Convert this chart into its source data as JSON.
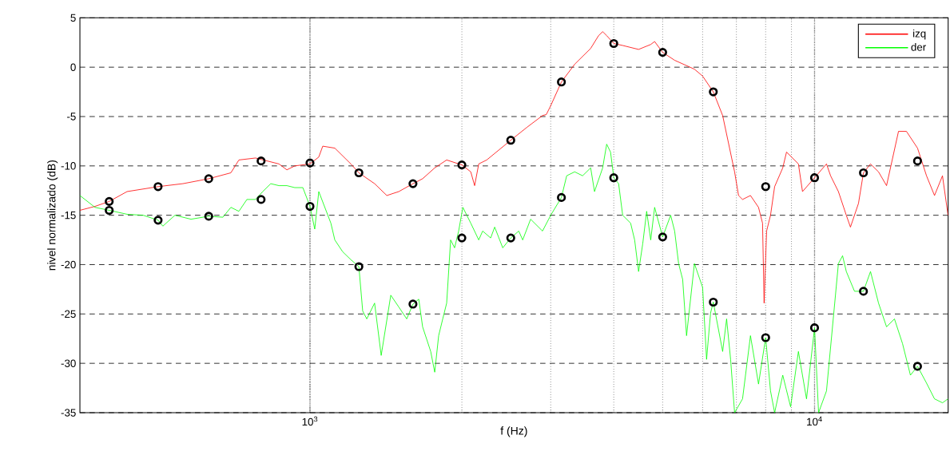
{
  "chart_data": {
    "type": "line",
    "xlabel": "f (Hz)",
    "ylabel": "nivel normalizado (dB)",
    "log": "x",
    "grid": true,
    "legend": "top right",
    "xlim": [
      350,
      18400
    ],
    "ylim": [
      -35,
      5
    ],
    "xticks": [
      {
        "value": 1000,
        "label": "10$^{3}$"
      },
      {
        "value": 10000,
        "label": "10$^{4}$"
      }
    ],
    "yticks": [
      -35,
      -30,
      -25,
      -20,
      -15,
      -10,
      -5,
      0,
      5
    ],
    "series": [
      {
        "name": "izq",
        "color": "#ff0000",
        "x": [
          350,
          375,
          400,
          434,
          500,
          560,
          630,
          697,
          723,
          780,
          868,
          900,
          933,
          1000,
          1041,
          1060,
          1120,
          1205,
          1250,
          1343,
          1420,
          1500,
          1600,
          1672,
          1767,
          1866,
          2000,
          2083,
          2120,
          2160,
          2240,
          2500,
          2690,
          2890,
          2940,
          3000,
          3150,
          3347,
          3600,
          3733,
          3803,
          3873,
          4000,
          4166,
          4480,
          4735,
          4820,
          5000,
          5281,
          5780,
          6000,
          6300,
          6575,
          6943,
          7070,
          7200,
          7465,
          7745,
          7888,
          7945,
          8035,
          8180,
          8335,
          8650,
          8800,
          9290,
          9465,
          10000,
          10560,
          10760,
          11150,
          11560,
          11780,
          12220,
          12500,
          12910,
          13390,
          13890,
          14670,
          15210,
          16000,
          16670,
          17290,
          17930,
          18390
        ],
        "values": [
          -14.5,
          -14.1,
          -13.6,
          -12.6,
          -12.1,
          -11.8,
          -11.3,
          -10.7,
          -9.4,
          -9.2,
          -9.8,
          -10.4,
          -10.0,
          -9.8,
          -9.1,
          -8.0,
          -8.2,
          -9.8,
          -10.7,
          -11.8,
          -13.0,
          -12.6,
          -11.8,
          -11.3,
          -10.2,
          -9.4,
          -9.9,
          -10.6,
          -12.0,
          -9.8,
          -9.4,
          -7.4,
          -6.1,
          -4.9,
          -4.8,
          -3.9,
          -1.5,
          0.3,
          1.9,
          3.2,
          3.6,
          3.2,
          2.4,
          2.2,
          1.8,
          2.3,
          2.6,
          1.5,
          0.7,
          -0.2,
          -0.9,
          -2.5,
          -4.9,
          -10.6,
          -13.0,
          -13.4,
          -13.0,
          -14.2,
          -15.8,
          -23.9,
          -16.6,
          -15.0,
          -12.1,
          -10.2,
          -8.6,
          -9.8,
          -12.6,
          -11.2,
          -9.8,
          -11.0,
          -12.6,
          -15.0,
          -16.2,
          -13.8,
          -10.7,
          -9.8,
          -10.6,
          -12.0,
          -6.5,
          -6.5,
          -8.2,
          -11.0,
          -13.0,
          -11.0,
          -15.0
        ]
      },
      {
        "name": "der",
        "color": "#00ff00",
        "x": [
          350,
          375,
          400,
          434,
          467,
          500,
          511,
          540,
          581,
          630,
          672,
          697,
          723,
          750,
          780,
          806,
          836,
          868,
          900,
          933,
          968,
          1000,
          1022,
          1041,
          1100,
          1120,
          1161,
          1205,
          1250,
          1272,
          1296,
          1343,
          1384,
          1446,
          1500,
          1555,
          1600,
          1643,
          1672,
          1735,
          1767,
          1799,
          1833,
          1866,
          1900,
          1935,
          1971,
          2009,
          2083,
          2160,
          2199,
          2281,
          2323,
          2410,
          2500,
          2593,
          2640,
          2737,
          2890,
          3000,
          3150,
          3227,
          3347,
          3470,
          3600,
          3664,
          3803,
          3873,
          3942,
          4000,
          4090,
          4166,
          4320,
          4400,
          4480,
          4565,
          4648,
          4735,
          4820,
          5000,
          5186,
          5281,
          5378,
          5478,
          5576,
          5780,
          6000,
          6110,
          6222,
          6300,
          6575,
          6695,
          6818,
          6943,
          7200,
          7465,
          7745,
          8000,
          8180,
          8335,
          8650,
          8965,
          9290,
          9640,
          10000,
          10185,
          10560,
          10960,
          11150,
          11365,
          11560,
          12000,
          12500,
          12910,
          13390,
          13890,
          14400,
          14940,
          15490,
          16000,
          16670,
          17290,
          17930,
          18390
        ],
        "values": [
          -13.0,
          -14.2,
          -14.5,
          -14.9,
          -15.0,
          -15.5,
          -16.1,
          -15.0,
          -15.4,
          -15.1,
          -15.2,
          -14.2,
          -14.6,
          -13.4,
          -13.4,
          -12.6,
          -11.8,
          -12.0,
          -12.0,
          -12.2,
          -12.2,
          -14.1,
          -16.4,
          -12.6,
          -15.8,
          -17.5,
          -18.7,
          -19.5,
          -20.2,
          -24.7,
          -25.5,
          -23.9,
          -29.2,
          -23.1,
          -24.3,
          -25.5,
          -24.0,
          -23.5,
          -26.3,
          -28.8,
          -30.9,
          -27.2,
          -25.5,
          -23.9,
          -17.5,
          -18.3,
          -16.6,
          -14.2,
          -15.8,
          -17.5,
          -16.6,
          -17.3,
          -16.2,
          -18.3,
          -17.3,
          -16.6,
          -17.5,
          -15.4,
          -16.6,
          -15.0,
          -13.2,
          -11.0,
          -10.6,
          -11.0,
          -10.2,
          -12.6,
          -10.2,
          -7.8,
          -8.6,
          -11.2,
          -11.8,
          -15.0,
          -15.8,
          -17.5,
          -20.7,
          -17.9,
          -14.6,
          -17.5,
          -14.2,
          -17.2,
          -15.0,
          -16.6,
          -19.9,
          -21.5,
          -27.2,
          -19.9,
          -22.3,
          -29.6,
          -24.9,
          -23.8,
          -28.8,
          -25.5,
          -29.6,
          -35.0,
          -33.6,
          -27.2,
          -32.1,
          -27.4,
          -32.8,
          -35.0,
          -31.2,
          -34.4,
          -28.8,
          -33.6,
          -26.4,
          -35.0,
          -32.8,
          -24.0,
          -19.9,
          -19.1,
          -20.7,
          -22.7,
          -22.7,
          -20.7,
          -23.9,
          -26.3,
          -25.5,
          -28.0,
          -31.2,
          -30.3,
          -32.0,
          -33.6,
          -34.0,
          -33.6
        ]
      },
      {
        "type": "scatter",
        "marker": "circle",
        "color": "#000000",
        "x": [
          400,
          500,
          630,
          800,
          1000,
          1250,
          1600,
          2000,
          2500,
          3150,
          4000,
          5000,
          6300,
          8000,
          10000,
          12500,
          16000
        ],
        "values": [
          -13.6,
          -12.1,
          -11.3,
          -9.5,
          -9.7,
          -10.7,
          -11.8,
          -9.9,
          -7.4,
          -1.5,
          2.4,
          1.5,
          -2.5,
          -12.1,
          -11.2,
          -10.7,
          -9.5
        ]
      },
      {
        "type": "scatter",
        "marker": "circle",
        "color": "#000000",
        "x": [
          400,
          500,
          630,
          800,
          1000,
          1250,
          1600,
          2000,
          2500,
          3150,
          4000,
          5000,
          6300,
          8000,
          10000,
          12500,
          16000
        ],
        "values": [
          -14.5,
          -15.5,
          -15.1,
          -13.4,
          -14.1,
          -20.2,
          -24.0,
          -17.3,
          -17.3,
          -13.2,
          -11.2,
          -17.2,
          -23.8,
          -27.4,
          -26.4,
          -22.7,
          -30.3
        ]
      }
    ]
  }
}
